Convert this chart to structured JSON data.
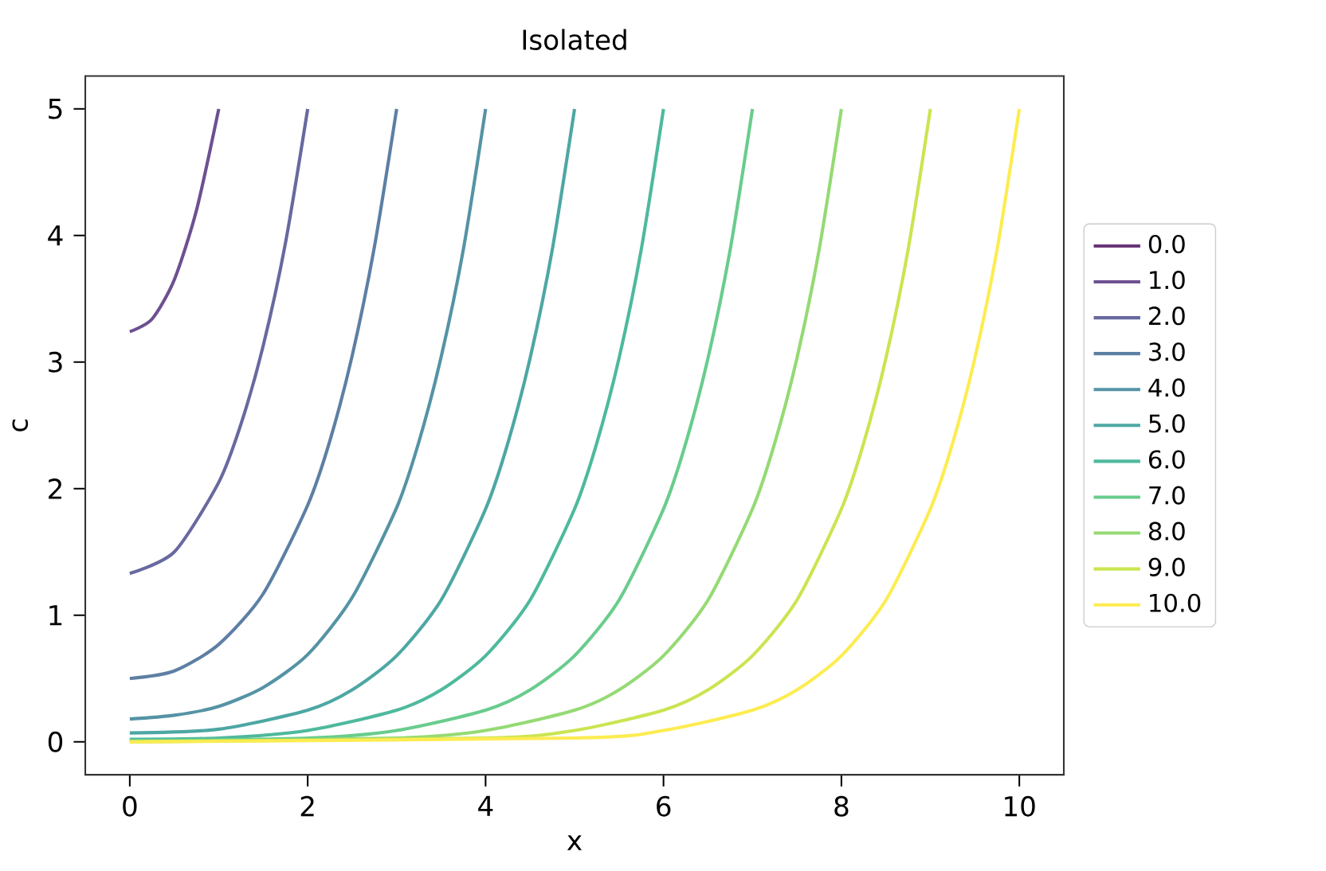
{
  "chart_data": {
    "type": "line",
    "title": "Isolated",
    "xlabel": "x",
    "ylabel": "c",
    "xlim": [
      -0.5,
      10.5
    ],
    "ylim": [
      -0.26,
      5.26
    ],
    "xticks": [
      0,
      2,
      4,
      6,
      8,
      10
    ],
    "yticks": [
      0,
      1,
      2,
      3,
      4,
      5
    ],
    "legend": "right",
    "marker": "none",
    "line_style": "solid",
    "series": [
      {
        "name": "0.0",
        "color": "#693476"
      },
      {
        "name": "1.0",
        "color": "#6d5091",
        "x": [
          0,
          0.25,
          0.5,
          0.75,
          1
        ],
        "values": [
          3.24,
          3.34,
          3.65,
          4.2,
          5
        ]
      },
      {
        "name": "2.0",
        "color": "#67699f",
        "x": [
          0,
          0.5,
          1,
          1.25,
          1.5,
          1.75,
          2
        ],
        "values": [
          1.33,
          1.5,
          2.05,
          2.51,
          3.13,
          3.94,
          5
        ]
      },
      {
        "name": "3.0",
        "color": "#5d7fa4",
        "x": [
          0,
          0.5,
          1,
          1.5,
          2,
          2.25,
          2.5,
          2.75,
          3
        ],
        "values": [
          0.5,
          0.56,
          0.77,
          1.17,
          1.87,
          2.38,
          3.05,
          3.91,
          5
        ]
      },
      {
        "name": "4.0",
        "color": "#5593a5",
        "x": [
          0,
          0.5,
          1,
          1.5,
          2,
          2.5,
          3,
          3.25,
          3.5,
          3.75,
          4
        ],
        "values": [
          0.18,
          0.21,
          0.28,
          0.43,
          0.69,
          1.14,
          1.85,
          2.37,
          3.04,
          3.89,
          5
        ]
      },
      {
        "name": "5.0",
        "color": "#4da7a3",
        "x": [
          0,
          1,
          2,
          2.5,
          3,
          3.5,
          4,
          4.25,
          4.5,
          4.75,
          5
        ],
        "values": [
          0.07,
          0.1,
          0.25,
          0.41,
          0.68,
          1.12,
          1.84,
          2.36,
          3.03,
          3.89,
          5
        ]
      },
      {
        "name": "6.0",
        "color": "#4eb99d",
        "x": [
          0,
          1,
          2,
          3,
          3.5,
          4,
          4.5,
          5,
          5.25,
          5.5,
          5.75,
          6
        ],
        "values": [
          0.02,
          0.03,
          0.09,
          0.25,
          0.41,
          0.68,
          1.12,
          1.84,
          2.36,
          3.03,
          3.89,
          5
        ]
      },
      {
        "name": "7.0",
        "color": "#69cc8d",
        "x": [
          0,
          2,
          3,
          4,
          4.5,
          5,
          5.5,
          6,
          6.25,
          6.5,
          6.75,
          7
        ],
        "values": [
          0.01,
          0.03,
          0.09,
          0.25,
          0.41,
          0.68,
          1.12,
          1.84,
          2.36,
          3.03,
          3.89,
          5
        ]
      },
      {
        "name": "8.0",
        "color": "#95da74",
        "x": [
          0,
          3,
          4,
          5,
          5.5,
          6,
          6.5,
          7,
          7.25,
          7.5,
          7.75,
          8
        ],
        "values": [
          0,
          0.03,
          0.09,
          0.25,
          0.41,
          0.68,
          1.12,
          1.84,
          2.36,
          3.03,
          3.89,
          5
        ]
      },
      {
        "name": "9.0",
        "color": "#cae551",
        "x": [
          0,
          4,
          5,
          6,
          6.5,
          7,
          7.5,
          8,
          8.25,
          8.5,
          8.75,
          9
        ],
        "values": [
          0,
          0.03,
          0.09,
          0.25,
          0.41,
          0.68,
          1.12,
          1.84,
          2.36,
          3.03,
          3.89,
          5
        ]
      },
      {
        "name": "10.0",
        "color": "#fdec51",
        "x": [
          0,
          5,
          6,
          7,
          7.5,
          8,
          8.5,
          9,
          9.25,
          9.5,
          9.75,
          10
        ],
        "values": [
          0,
          0.03,
          0.09,
          0.25,
          0.41,
          0.68,
          1.12,
          1.84,
          2.36,
          3.03,
          3.89,
          5
        ]
      }
    ]
  }
}
